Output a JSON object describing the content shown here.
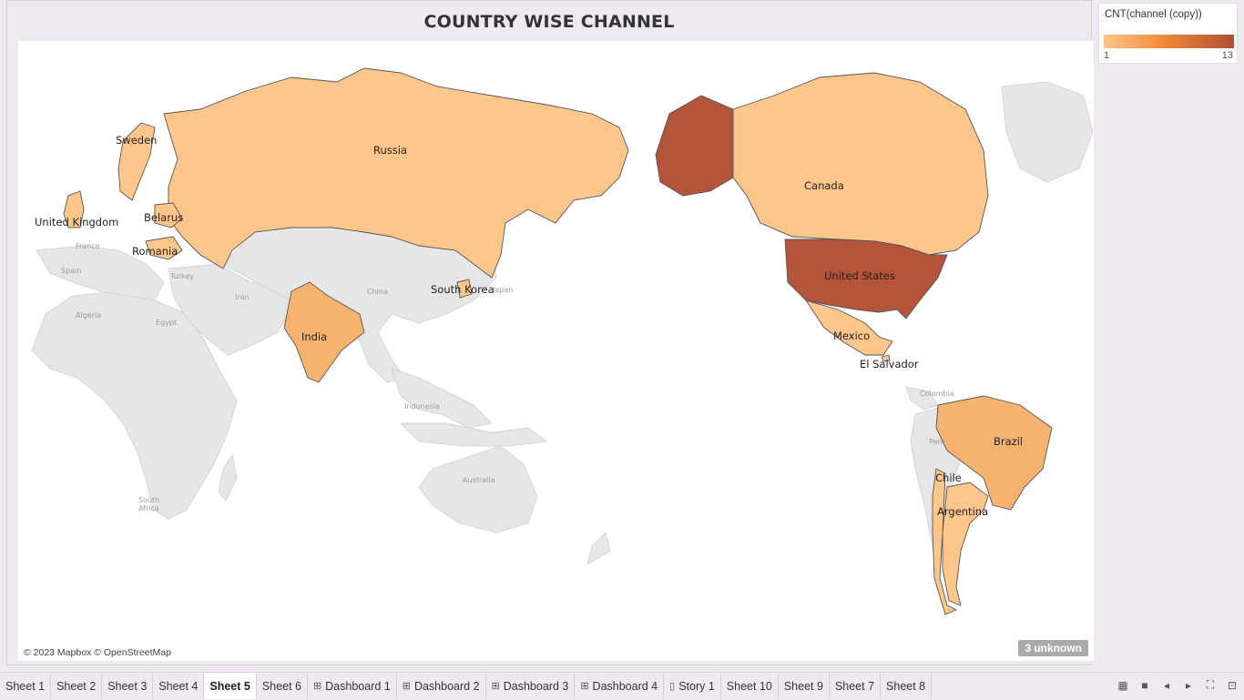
{
  "sheet": {
    "title": "COUNTRY WISE CHANNEL",
    "copyright": "© 2023 Mapbox © OpenStreetMap",
    "unknown_badge": "3 unknown"
  },
  "legend": {
    "title": "CNT(channel (copy))",
    "min": "1",
    "max": "13",
    "colors": {
      "low": "#fdc689",
      "mid": "#f08a3c",
      "high": "#b04f32"
    }
  },
  "map": {
    "country_labels": [
      "Sweden",
      "Russia",
      "United Kingdom",
      "Belarus",
      "Romania",
      "India",
      "South Korea",
      "Canada",
      "United States",
      "Mexico",
      "El Salvador",
      "Brazil",
      "Chile",
      "Argentina"
    ],
    "base_labels": [
      "France",
      "Spain",
      "Turkey",
      "Iran",
      "China",
      "Algeria",
      "Egypt",
      "Japan",
      "Indonesia",
      "Australia",
      "South Africa",
      "Colombia",
      "Peru"
    ],
    "colors": {
      "highest": "#b4553a",
      "high": "#ba5c41",
      "mid": "#f6b36f",
      "low": "#fdc68b",
      "base": "#e6e6e6"
    }
  },
  "tabs": [
    {
      "label": "Sheet 1",
      "icon": ""
    },
    {
      "label": "Sheet 2",
      "icon": ""
    },
    {
      "label": "Sheet 3",
      "icon": ""
    },
    {
      "label": "Sheet 4",
      "icon": ""
    },
    {
      "label": "Sheet 5",
      "icon": "",
      "active": true
    },
    {
      "label": "Sheet 6",
      "icon": ""
    },
    {
      "label": "Dashboard 1",
      "icon": "dashboard-icon"
    },
    {
      "label": "Dashboard 2",
      "icon": "dashboard-icon"
    },
    {
      "label": "Dashboard 3",
      "icon": "dashboard-icon"
    },
    {
      "label": "Dashboard 4",
      "icon": "dashboard-icon"
    },
    {
      "label": "Story 1",
      "icon": "story-icon"
    },
    {
      "label": "Sheet 10",
      "icon": ""
    },
    {
      "label": "Sheet 9",
      "icon": ""
    },
    {
      "label": "Sheet 7",
      "icon": ""
    },
    {
      "label": "Sheet 8",
      "icon": ""
    }
  ],
  "nav_icons": [
    "filmstrip-icon",
    "tab-view-icon",
    "prev-sheet-icon",
    "next-sheet-icon",
    "fullscreen-icon",
    "presentation-icon"
  ]
}
